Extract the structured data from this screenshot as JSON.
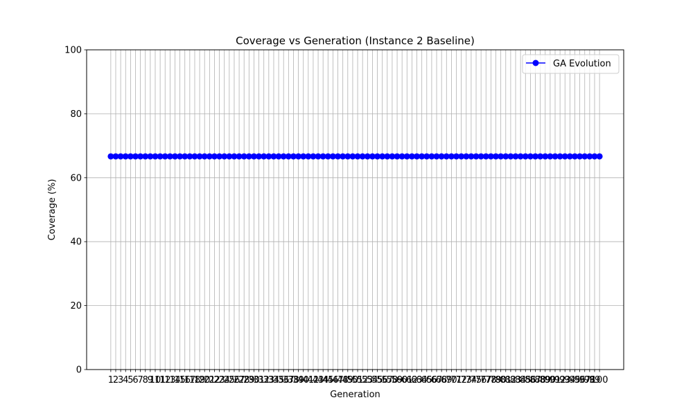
{
  "chart_data": {
    "type": "line",
    "title": "Coverage vs Generation (Instance 2 Baseline)",
    "xlabel": "Generation",
    "ylabel": "Coverage (%)",
    "x_start": 1,
    "x_end": 100,
    "ylim": [
      0,
      100
    ],
    "yticks": [
      0,
      20,
      40,
      60,
      80,
      100
    ],
    "grid": true,
    "legend_position": "top-right",
    "series": [
      {
        "name": "GA Evolution",
        "color": "#0000ff",
        "marker": "circle",
        "constant_value": 66.67
      }
    ]
  }
}
